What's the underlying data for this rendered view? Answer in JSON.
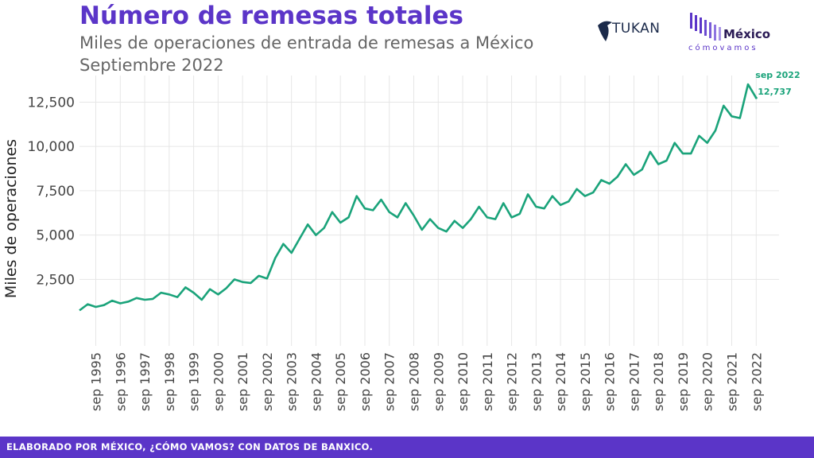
{
  "header": {
    "title": "Número de remesas totales",
    "subtitle": "Miles de operaciones de entrada de remesas a México",
    "period": "Septiembre 2022"
  },
  "logos": {
    "tukan": "TUKAN",
    "mexico_name": "México",
    "mexico_tagline": "cómovamos"
  },
  "footer": {
    "text": "ELABORADO POR MÉXICO, ¿CÓMO VAMOS? CON DATOS DE BANXICO."
  },
  "colors": {
    "accent": "#5b35c8",
    "line": "#1aa37a"
  },
  "chart_data": {
    "type": "line",
    "title": "Número de remesas totales",
    "ylabel": "Miles de operaciones",
    "xlabel": "",
    "ylim": [
      -1250,
      14000
    ],
    "grid": true,
    "y_ticks": [
      2500,
      5000,
      7500,
      10000,
      12500
    ],
    "y_tick_labels": [
      "2,500",
      "5,000",
      "7,500",
      "10,000",
      "12,500"
    ],
    "x_tick_labels": [
      "sep 1995",
      "sep 1996",
      "sep 1997",
      "sep 1998",
      "sep 1999",
      "sep 2000",
      "sep 2001",
      "sep 2002",
      "sep 2003",
      "sep 2004",
      "sep 2005",
      "sep 2006",
      "sep 2007",
      "sep 2008",
      "sep 2009",
      "sep 2010",
      "sep 2011",
      "sep 2012",
      "sep 2013",
      "sep 2014",
      "sep 2015",
      "sep 2016",
      "sep 2017",
      "sep 2018",
      "sep 2019",
      "sep 2020",
      "sep 2021",
      "sep 2022"
    ],
    "annotation": {
      "date": "sep 2022",
      "value": 12737,
      "label_date": "sep 2022",
      "label_value": "12,737"
    },
    "series": [
      {
        "x": [
          "1995-01",
          "1995-05",
          "1995-09",
          "1996-01",
          "1996-05",
          "1996-09",
          "1997-01",
          "1997-05",
          "1997-09",
          "1998-01",
          "1998-05",
          "1998-09",
          "1999-01",
          "1999-05",
          "1999-09",
          "2000-01",
          "2000-05",
          "2000-09",
          "2001-01",
          "2001-05",
          "2001-09",
          "2002-01",
          "2002-05",
          "2002-09",
          "2003-01",
          "2003-05",
          "2003-09",
          "2004-01",
          "2004-05",
          "2004-09",
          "2005-01",
          "2005-05",
          "2005-09",
          "2006-01",
          "2006-05",
          "2006-09",
          "2007-01",
          "2007-05",
          "2007-09",
          "2008-01",
          "2008-05",
          "2008-09",
          "2009-01",
          "2009-05",
          "2009-09",
          "2010-01",
          "2010-05",
          "2010-09",
          "2011-01",
          "2011-05",
          "2011-09",
          "2012-01",
          "2012-05",
          "2012-09",
          "2013-01",
          "2013-05",
          "2013-09",
          "2014-01",
          "2014-05",
          "2014-09",
          "2015-01",
          "2015-05",
          "2015-09",
          "2016-01",
          "2016-05",
          "2016-09",
          "2017-01",
          "2017-05",
          "2017-09",
          "2018-01",
          "2018-05",
          "2018-09",
          "2019-01",
          "2019-05",
          "2019-09",
          "2020-01",
          "2020-05",
          "2020-09",
          "2021-01",
          "2021-05",
          "2021-09",
          "2022-01",
          "2022-05",
          "2022-09"
        ],
        "values": [
          750,
          1100,
          950,
          1050,
          1300,
          1150,
          1250,
          1450,
          1350,
          1400,
          1750,
          1650,
          1500,
          2050,
          1750,
          1350,
          1950,
          1650,
          2000,
          2500,
          2350,
          2300,
          2700,
          2550,
          3700,
          4500,
          4000,
          4800,
          5600,
          5000,
          5400,
          6300,
          5700,
          6000,
          7200,
          6500,
          6400,
          7000,
          6300,
          6000,
          6800,
          6100,
          5300,
          5900,
          5400,
          5200,
          5800,
          5400,
          5900,
          6600,
          6000,
          5900,
          6800,
          6000,
          6200,
          7300,
          6600,
          6500,
          7200,
          6700,
          6900,
          7600,
          7200,
          7400,
          8100,
          7900,
          8300,
          9000,
          8400,
          8700,
          9700,
          9000,
          9200,
          10200,
          9600,
          9600,
          10600,
          10200,
          10900,
          12300,
          11700,
          11600,
          13500,
          12737
        ]
      }
    ]
  }
}
